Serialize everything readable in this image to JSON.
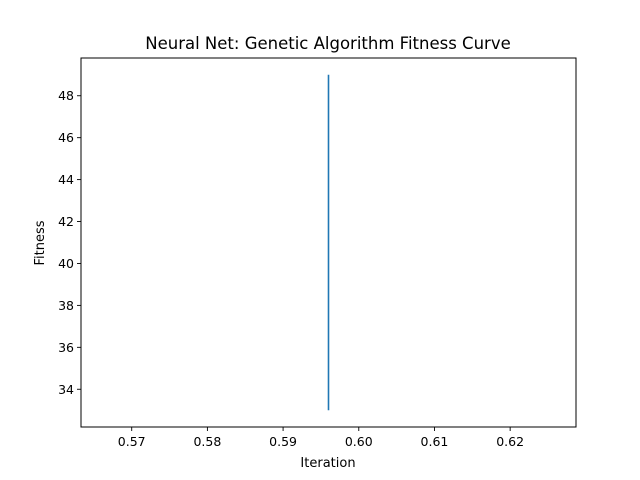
{
  "chart_data": {
    "type": "line",
    "title": "Neural Net: Genetic Algorithm Fitness Curve",
    "xlabel": "Iteration",
    "ylabel": "Fitness",
    "xlim": [
      0.5633,
      0.6287
    ],
    "ylim": [
      32.2,
      49.8
    ],
    "xticks": [
      {
        "value": 0.57,
        "label": "0.57"
      },
      {
        "value": 0.58,
        "label": "0.58"
      },
      {
        "value": 0.59,
        "label": "0.59"
      },
      {
        "value": 0.6,
        "label": "0.60"
      },
      {
        "value": 0.61,
        "label": "0.61"
      },
      {
        "value": 0.62,
        "label": "0.62"
      }
    ],
    "yticks": [
      {
        "value": 34,
        "label": "34"
      },
      {
        "value": 36,
        "label": "36"
      },
      {
        "value": 38,
        "label": "38"
      },
      {
        "value": 40,
        "label": "40"
      },
      {
        "value": 42,
        "label": "42"
      },
      {
        "value": 44,
        "label": "44"
      },
      {
        "value": 46,
        "label": "46"
      },
      {
        "value": 48,
        "label": "48"
      }
    ],
    "grid": false,
    "series": [
      {
        "color": "#1f77b4",
        "x": [
          0.596,
          0.596
        ],
        "y": [
          33.0,
          49.0
        ]
      }
    ]
  }
}
